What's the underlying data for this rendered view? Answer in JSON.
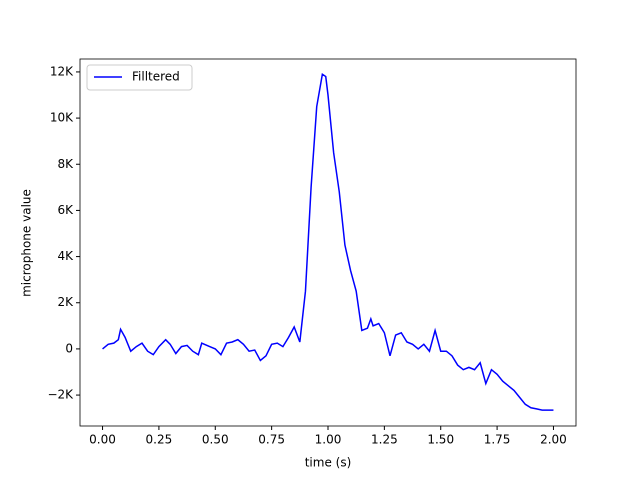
{
  "chart_data": {
    "type": "line",
    "xlabel": "time (s)",
    "ylabel": "microphone value",
    "x": [
      0.0,
      0.025,
      0.05,
      0.07,
      0.08,
      0.1,
      0.125,
      0.15,
      0.175,
      0.2,
      0.225,
      0.25,
      0.28,
      0.3,
      0.325,
      0.35,
      0.375,
      0.4,
      0.425,
      0.44,
      0.475,
      0.5,
      0.525,
      0.55,
      0.575,
      0.6,
      0.625,
      0.65,
      0.675,
      0.7,
      0.725,
      0.75,
      0.775,
      0.8,
      0.825,
      0.85,
      0.875,
      0.9,
      0.925,
      0.95,
      0.975,
      0.99,
      1.0,
      1.025,
      1.05,
      1.075,
      1.1,
      1.125,
      1.15,
      1.175,
      1.19,
      1.2,
      1.225,
      1.25,
      1.275,
      1.3,
      1.325,
      1.35,
      1.375,
      1.4,
      1.425,
      1.45,
      1.475,
      1.5,
      1.525,
      1.55,
      1.575,
      1.6,
      1.625,
      1.65,
      1.675,
      1.7,
      1.725,
      1.75,
      1.775,
      1.8,
      1.825,
      1.85,
      1.875,
      1.9,
      1.925,
      1.95,
      2.0
    ],
    "series": [
      {
        "name": "Filltered",
        "color": "#0000ff",
        "values": [
          0,
          200,
          250,
          400,
          850,
          500,
          -100,
          100,
          250,
          -100,
          -250,
          100,
          400,
          200,
          -200,
          100,
          150,
          -100,
          -250,
          250,
          100,
          0,
          -250,
          250,
          300,
          400,
          200,
          -100,
          -50,
          -500,
          -300,
          200,
          250,
          100,
          500,
          950,
          300,
          2500,
          7000,
          10500,
          11900,
          11800,
          11000,
          8500,
          6800,
          4500,
          3400,
          2500,
          800,
          900,
          1300,
          1000,
          1100,
          700,
          -300,
          600,
          700,
          300,
          200,
          0,
          200,
          -100,
          800,
          -100,
          -100,
          -300,
          -700,
          -900,
          -800,
          -900,
          -600,
          -1500,
          -900,
          -1100,
          -1400,
          -1600,
          -1800,
          -2100,
          -2400,
          -2550,
          -2600,
          -2650,
          -2650
        ]
      }
    ],
    "xlim": [
      -0.1,
      2.1
    ],
    "xticks": [
      {
        "value": 0,
        "label": "0.00"
      },
      {
        "value": 0.25,
        "label": "0.25"
      },
      {
        "value": 0.5,
        "label": "0.50"
      },
      {
        "value": 0.75,
        "label": "0.75"
      },
      {
        "value": 1,
        "label": "1.00"
      },
      {
        "value": 1.25,
        "label": "1.25"
      },
      {
        "value": 1.5,
        "label": "1.50"
      },
      {
        "value": 1.75,
        "label": "1.75"
      },
      {
        "value": 2,
        "label": "2.00"
      }
    ],
    "ylim": [
      -3340,
      12560
    ],
    "yticks": [
      {
        "value": -2000,
        "label": "−2K"
      },
      0,
      {
        "value": 2000,
        "label": "2K"
      },
      {
        "value": 4000,
        "label": "4K"
      },
      {
        "value": 6000,
        "label": "6K"
      },
      {
        "value": 8000,
        "label": "8K"
      },
      {
        "value": 10000,
        "label": "10K"
      },
      {
        "value": 12000,
        "label": "12K"
      }
    ],
    "legend": "upper left"
  }
}
